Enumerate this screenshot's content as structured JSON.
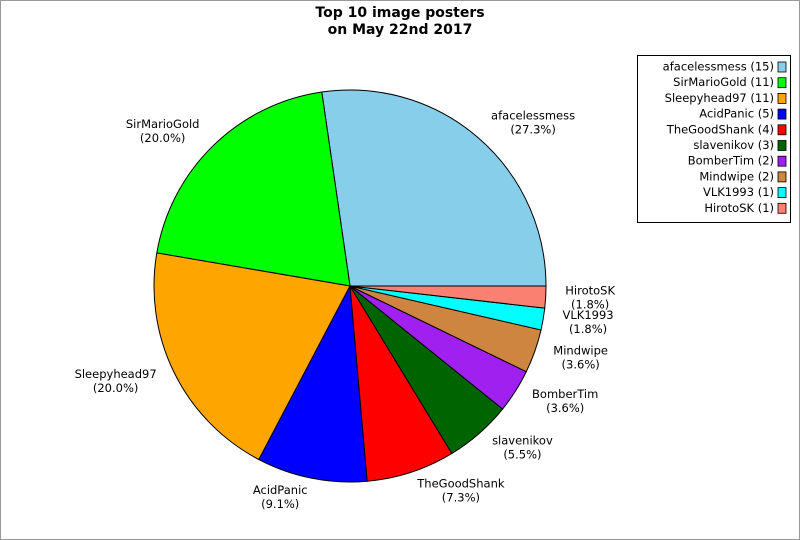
{
  "chart_data": {
    "type": "pie",
    "title": [
      "Top 10 image posters",
      "on May 22nd 2017"
    ],
    "categories": [
      "afacelessmess",
      "SirMarioGold",
      "Sleepyhead97",
      "AcidPanic",
      "TheGoodShank",
      "slavenikov",
      "BomberTim",
      "Mindwipe",
      "VLK1993",
      "HirotoSK"
    ],
    "values": [
      27.3,
      20.0,
      20.0,
      9.1,
      7.3,
      5.5,
      3.6,
      3.6,
      1.8,
      1.8
    ],
    "value_labels": [
      "(27.3%)",
      "(20.0%)",
      "(20.0%)",
      "(9.1%)",
      "(7.3%)",
      "(5.5%)",
      "(3.6%)",
      "(3.6%)",
      "(1.8%)",
      "(1.8%)"
    ],
    "colors": [
      "#87ceeb",
      "#00ff00",
      "#ffa500",
      "#0000ff",
      "#ff0000",
      "#006400",
      "#a020f0",
      "#cd853f",
      "#00ffff",
      "#fa8072"
    ],
    "legend_labels": [
      "afacelessmess (15)",
      "SirMarioGold (11)",
      "Sleepyhead97 (11)",
      "AcidPanic (5)",
      "TheGoodShank (4)",
      "slavenikov (3)",
      "BomberTim (2)",
      "Mindwipe (2)",
      "VLK1993 (1)",
      "HirotoSK (1)"
    ],
    "legend_position": "upper right"
  }
}
